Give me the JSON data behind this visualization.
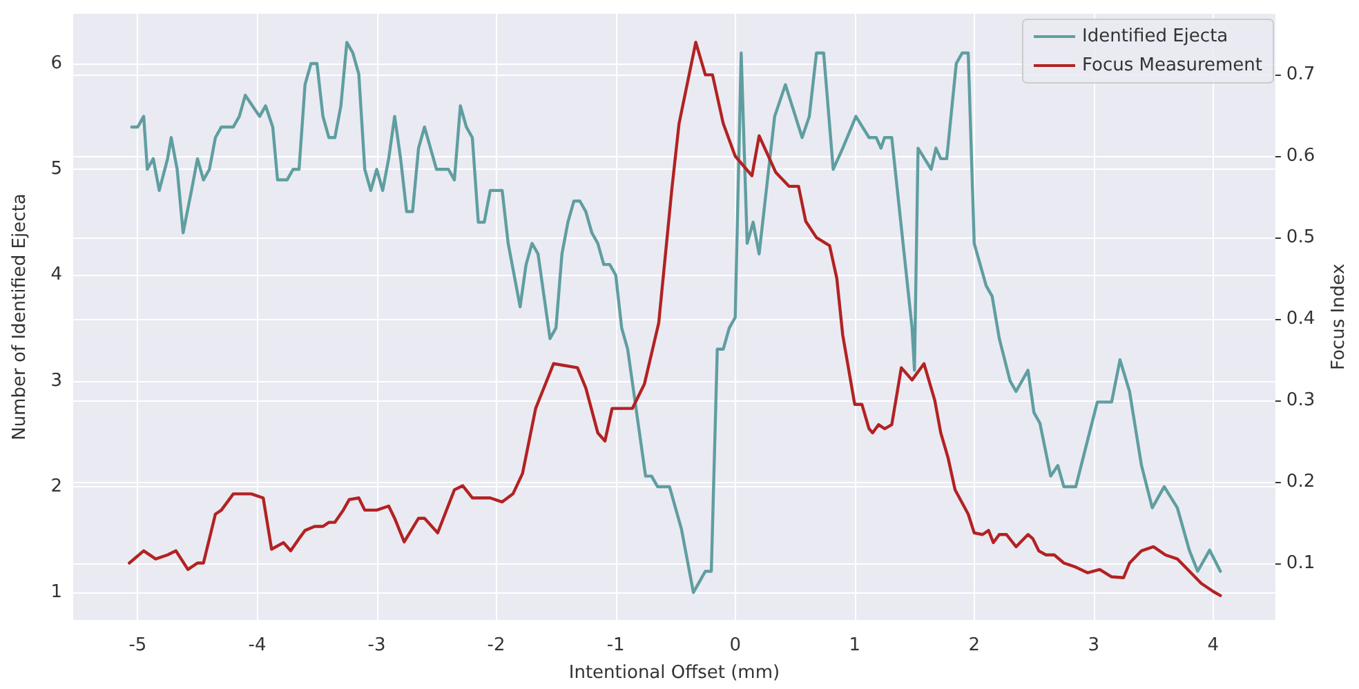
{
  "chart_data": {
    "type": "line",
    "xlabel": "Intentional Offset (mm)",
    "ylabel": "Number of Identified Ejecta",
    "y2label": "Focus Index",
    "xlim": [
      -5.54,
      4.52
    ],
    "xticks": [
      -5,
      -4,
      -3,
      -2,
      -1,
      0,
      1,
      2,
      3,
      4
    ],
    "ylim": [
      0.74,
      6.47
    ],
    "yticks": [
      1,
      2,
      3,
      4,
      5,
      6
    ],
    "y2lim": [
      0.03,
      0.775
    ],
    "y2ticks": [
      0.1,
      0.2,
      0.3,
      0.4,
      0.5,
      0.6,
      0.7
    ],
    "grid": true,
    "legend": "top right",
    "marker": "none",
    "line_style": "solid",
    "series": [
      {
        "name": "Identified Ejecta",
        "color": "#5f9ea0",
        "x": [
          -5.05,
          -5.0,
          -4.95,
          -4.92,
          -4.87,
          -4.82,
          -4.75,
          -4.72,
          -4.67,
          -4.62,
          -4.55,
          -4.5,
          -4.45,
          -4.4,
          -4.35,
          -4.3,
          -4.2,
          -4.15,
          -4.1,
          -3.98,
          -3.93,
          -3.87,
          -3.83,
          -3.75,
          -3.7,
          -3.65,
          -3.6,
          -3.55,
          -3.5,
          -3.45,
          -3.4,
          -3.35,
          -3.3,
          -3.25,
          -3.2,
          -3.15,
          -3.1,
          -3.05,
          -3.0,
          -2.95,
          -2.9,
          -2.85,
          -2.8,
          -2.75,
          -2.7,
          -2.65,
          -2.6,
          -2.55,
          -2.5,
          -2.4,
          -2.35,
          -2.3,
          -2.25,
          -2.2,
          -2.15,
          -2.1,
          -2.05,
          -1.95,
          -1.9,
          -1.8,
          -1.75,
          -1.7,
          -1.65,
          -1.6,
          -1.55,
          -1.5,
          -1.45,
          -1.4,
          -1.35,
          -1.3,
          -1.25,
          -1.2,
          -1.15,
          -1.1,
          -1.05,
          -1.0,
          -0.95,
          -0.9,
          -0.85,
          -0.8,
          -0.75,
          -0.7,
          -0.65,
          -0.55,
          -0.5,
          -0.45,
          -0.4,
          -0.35,
          -0.3,
          -0.25,
          -0.2,
          -0.15,
          -0.1,
          -0.05,
          0.0,
          0.05,
          0.1,
          0.15,
          0.2,
          0.33,
          0.42,
          0.56,
          0.62,
          0.68,
          0.74,
          0.82,
          0.9,
          1.01,
          1.12,
          1.18,
          1.22,
          1.25,
          1.31,
          1.48,
          1.5,
          1.53,
          1.64,
          1.68,
          1.72,
          1.77,
          1.85,
          1.9,
          1.95,
          2.0,
          2.1,
          2.15,
          2.21,
          2.3,
          2.35,
          2.45,
          2.5,
          2.55,
          2.64,
          2.7,
          2.75,
          2.85,
          3.03,
          3.15,
          3.22,
          3.3,
          3.4,
          3.49,
          3.59,
          3.7,
          3.8,
          3.87,
          3.97,
          4.06
        ],
        "values": [
          5.4,
          5.4,
          5.5,
          5.0,
          5.1,
          4.8,
          5.1,
          5.3,
          5.0,
          4.4,
          4.8,
          5.1,
          4.9,
          5.0,
          5.3,
          5.4,
          5.4,
          5.5,
          5.7,
          5.5,
          5.6,
          5.4,
          4.9,
          4.9,
          5.0,
          5.0,
          5.8,
          6.0,
          6.0,
          5.5,
          5.3,
          5.3,
          5.6,
          6.2,
          6.1,
          5.9,
          5.0,
          4.8,
          5.0,
          4.8,
          5.1,
          5.5,
          5.1,
          4.6,
          4.6,
          5.2,
          5.4,
          5.2,
          5.0,
          5.0,
          4.9,
          5.6,
          5.4,
          5.3,
          4.5,
          4.5,
          4.8,
          4.8,
          4.3,
          3.7,
          4.1,
          4.3,
          4.2,
          3.8,
          3.4,
          3.5,
          4.2,
          4.5,
          4.7,
          4.7,
          4.6,
          4.4,
          4.3,
          4.1,
          4.1,
          4.0,
          3.5,
          3.3,
          2.9,
          2.5,
          2.1,
          2.1,
          2.0,
          2.0,
          1.8,
          1.6,
          1.3,
          1.0,
          1.1,
          1.2,
          1.2,
          3.3,
          3.3,
          3.5,
          3.6,
          6.1,
          4.3,
          4.5,
          4.2,
          5.5,
          5.8,
          5.3,
          5.5,
          6.1,
          6.1,
          5.0,
          5.2,
          5.5,
          5.3,
          5.3,
          5.2,
          5.3,
          5.3,
          3.5,
          3.1,
          5.2,
          5.0,
          5.2,
          5.1,
          5.1,
          6.0,
          6.1,
          6.1,
          4.3,
          3.9,
          3.8,
          3.4,
          3.0,
          2.9,
          3.1,
          2.7,
          2.6,
          2.1,
          2.2,
          2.0,
          2.0,
          2.8,
          2.8,
          3.2,
          2.9,
          2.2,
          1.8,
          2.0,
          1.8,
          1.4,
          1.2,
          1.4,
          1.2
        ]
      },
      {
        "name": "Focus Measurement",
        "color": "#b22222",
        "axis": "y2",
        "x": [
          -5.07,
          -4.95,
          -4.85,
          -4.75,
          -4.68,
          -4.58,
          -4.5,
          -4.45,
          -4.35,
          -4.3,
          -4.2,
          -4.05,
          -3.95,
          -3.88,
          -3.78,
          -3.72,
          -3.65,
          -3.6,
          -3.52,
          -3.45,
          -3.4,
          -3.35,
          -3.28,
          -3.23,
          -3.15,
          -3.1,
          -3.0,
          -2.9,
          -2.85,
          -2.77,
          -2.65,
          -2.6,
          -2.49,
          -2.35,
          -2.28,
          -2.2,
          -2.05,
          -1.95,
          -1.86,
          -1.78,
          -1.67,
          -1.52,
          -1.32,
          -1.25,
          -1.15,
          -1.09,
          -1.03,
          -0.86,
          -0.76,
          -0.64,
          -0.53,
          -0.47,
          -0.33,
          -0.25,
          -0.19,
          -0.1,
          0.0,
          0.14,
          0.2,
          0.34,
          0.45,
          0.53,
          0.59,
          0.68,
          0.79,
          0.85,
          0.9,
          1.0,
          1.06,
          1.12,
          1.15,
          1.2,
          1.25,
          1.31,
          1.39,
          1.48,
          1.58,
          1.67,
          1.72,
          1.78,
          1.84,
          1.95,
          2.0,
          2.07,
          2.12,
          2.16,
          2.21,
          2.27,
          2.35,
          2.45,
          2.49,
          2.54,
          2.6,
          2.67,
          2.75,
          2.85,
          2.95,
          3.05,
          3.15,
          3.25,
          3.3,
          3.4,
          3.5,
          3.6,
          3.7,
          3.8,
          3.9,
          4.0,
          4.06
        ],
        "values": [
          0.1,
          0.115,
          0.105,
          0.11,
          0.115,
          0.092,
          0.1,
          0.1,
          0.16,
          0.165,
          0.185,
          0.185,
          0.18,
          0.117,
          0.125,
          0.115,
          0.13,
          0.14,
          0.145,
          0.145,
          0.15,
          0.15,
          0.165,
          0.178,
          0.18,
          0.165,
          0.165,
          0.17,
          0.155,
          0.126,
          0.155,
          0.155,
          0.137,
          0.19,
          0.195,
          0.18,
          0.18,
          0.175,
          0.185,
          0.21,
          0.29,
          0.345,
          0.34,
          0.315,
          0.26,
          0.25,
          0.29,
          0.29,
          0.32,
          0.395,
          0.56,
          0.64,
          0.74,
          0.7,
          0.7,
          0.64,
          0.6,
          0.576,
          0.625,
          0.58,
          0.563,
          0.563,
          0.52,
          0.5,
          0.49,
          0.45,
          0.38,
          0.295,
          0.295,
          0.265,
          0.26,
          0.27,
          0.265,
          0.27,
          0.34,
          0.325,
          0.345,
          0.3,
          0.26,
          0.23,
          0.19,
          0.16,
          0.137,
          0.135,
          0.14,
          0.125,
          0.135,
          0.135,
          0.12,
          0.135,
          0.13,
          0.115,
          0.11,
          0.11,
          0.1,
          0.095,
          0.088,
          0.092,
          0.083,
          0.082,
          0.1,
          0.115,
          0.12,
          0.11,
          0.105,
          0.09,
          0.075,
          0.065,
          0.06
        ]
      }
    ]
  }
}
